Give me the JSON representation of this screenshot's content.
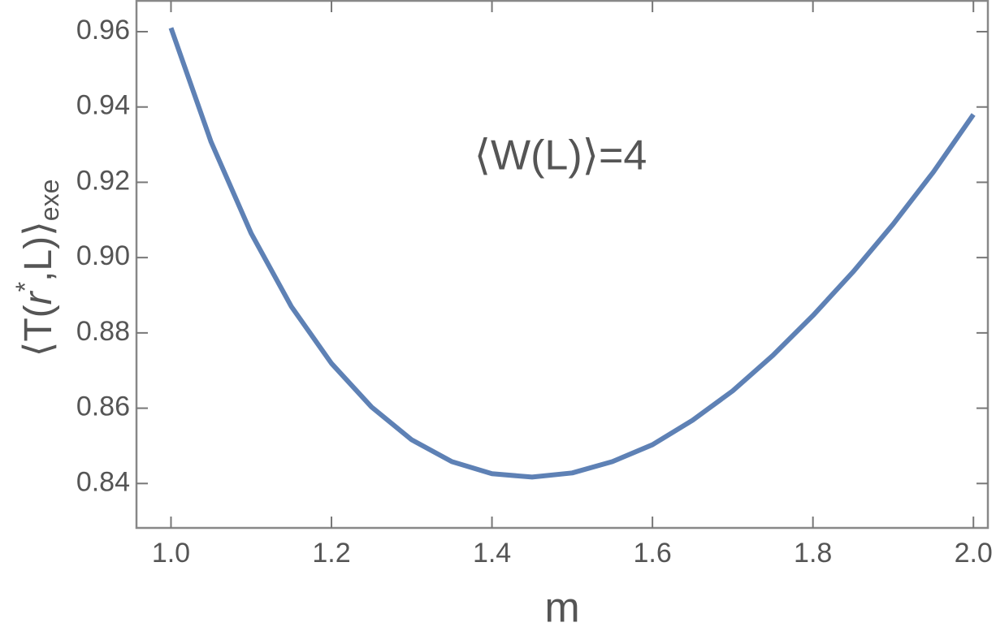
{
  "chart_data": {
    "type": "line",
    "xlabel": "m",
    "ylabel": [
      "⟨T(",
      "r",
      "*",
      ",L)⟩",
      "exe"
    ],
    "annotation": "⟨W(L)⟩=4",
    "x": [
      1.0,
      1.05,
      1.1,
      1.15,
      1.2,
      1.25,
      1.3,
      1.35,
      1.4,
      1.45,
      1.5,
      1.55,
      1.6,
      1.65,
      1.7,
      1.75,
      1.8,
      1.85,
      1.9,
      1.95,
      2.0
    ],
    "values": [
      0.961,
      0.9307,
      0.9064,
      0.887,
      0.8719,
      0.8603,
      0.8516,
      0.8458,
      0.8426,
      0.8417,
      0.8428,
      0.8458,
      0.8503,
      0.8568,
      0.8646,
      0.874,
      0.8846,
      0.8962,
      0.9089,
      0.9227,
      0.938
    ],
    "color": "#5e81b5",
    "xlim": [
      0.957,
      2.018
    ],
    "ylim": [
      0.8282,
      0.9682
    ],
    "xticks": [
      {
        "value": 1,
        "label": "1.0"
      },
      1.2,
      1.4,
      1.6,
      1.8,
      {
        "value": 2,
        "label": "2.0"
      }
    ],
    "yticks": [
      0.84,
      0.86,
      0.88,
      {
        "value": 0.9,
        "label": "0.90"
      },
      0.92,
      0.94,
      0.96
    ]
  }
}
